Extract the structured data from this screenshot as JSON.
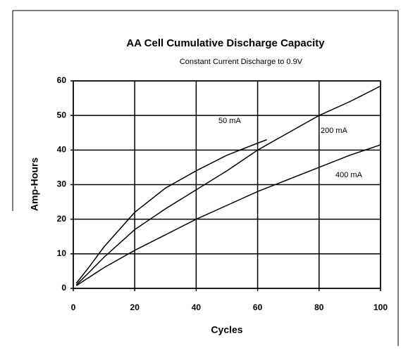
{
  "chart_data": {
    "type": "line",
    "title": "AA Cell Cumulative Discharge Capacity",
    "subtitle": "Constant Current Discharge to 0.9V",
    "xlabel": "Cycles",
    "ylabel": "Amp-Hours",
    "xlim": [
      0,
      100
    ],
    "xticks": [
      0,
      20,
      40,
      60,
      80,
      100
    ],
    "ylim": [
      0,
      60
    ],
    "yticks": [
      0,
      10,
      20,
      30,
      40,
      50,
      60
    ],
    "grid": true,
    "series": [
      {
        "name": "50 mA",
        "color": "#000000",
        "x": [
          1,
          5,
          10,
          20,
          30,
          40,
          50,
          60,
          63
        ],
        "values": [
          1.5,
          6,
          12,
          22,
          29,
          34,
          38.5,
          42,
          43
        ]
      },
      {
        "name": "200 mA",
        "color": "#000000",
        "x": [
          1,
          5,
          10,
          20,
          30,
          40,
          50,
          60,
          70,
          80,
          90,
          100
        ],
        "values": [
          1,
          4.5,
          9,
          17,
          23,
          28.5,
          34,
          40,
          45,
          50,
          54,
          58.5
        ]
      },
      {
        "name": "400 mA",
        "color": "#000000",
        "x": [
          1,
          10,
          20,
          30,
          40,
          50,
          60,
          70,
          80,
          90,
          100
        ],
        "values": [
          0.8,
          6,
          11,
          15.5,
          20,
          24,
          28,
          31.5,
          35,
          38.5,
          41.5
        ]
      }
    ]
  }
}
